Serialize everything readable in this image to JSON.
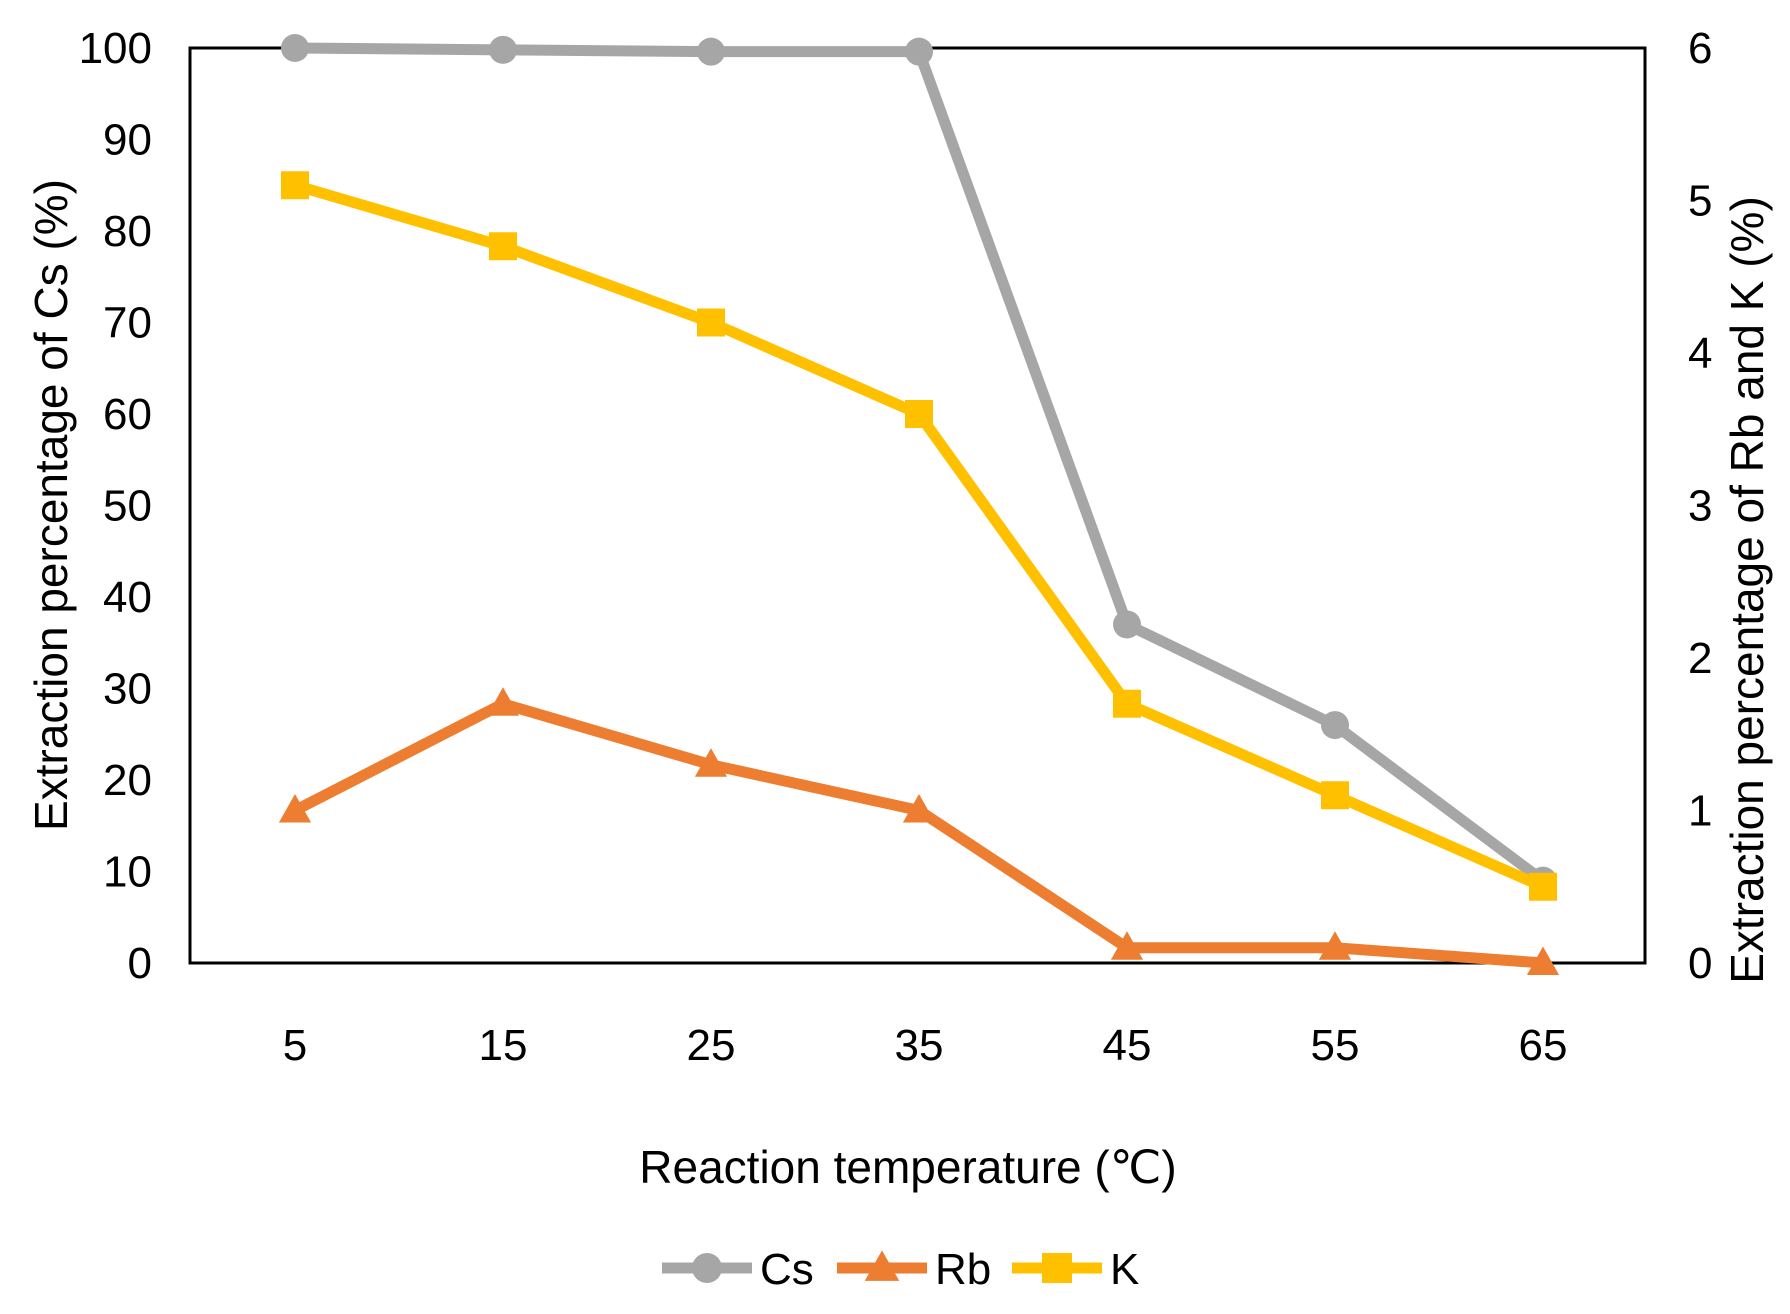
{
  "chart_data": {
    "type": "line",
    "title": "",
    "xlabel": "Reaction temperature (℃)",
    "ylabel_left": "Extraction percentage of Cs (%)",
    "ylabel_right": "Extraction percentage of Rb and K (%)",
    "categories": [
      "5",
      "15",
      "25",
      "35",
      "45",
      "55",
      "65"
    ],
    "y_left": {
      "min": 0,
      "max": 100,
      "step": 10,
      "ticks": [
        "0",
        "10",
        "20",
        "30",
        "40",
        "50",
        "60",
        "70",
        "80",
        "90",
        "100"
      ]
    },
    "y_right": {
      "min": 0,
      "max": 6,
      "step": 1,
      "ticks": [
        "0",
        "1",
        "2",
        "3",
        "4",
        "5",
        "6"
      ]
    },
    "grid": false,
    "legend_position": "bottom",
    "series": [
      {
        "name": "Cs",
        "axis": "left",
        "color": "#a6a6a6",
        "marker": "circle",
        "values": [
          100,
          99.8,
          99.6,
          99.6,
          37,
          26,
          9
        ]
      },
      {
        "name": "Rb",
        "axis": "right",
        "color": "#ed7d31",
        "marker": "triangle",
        "values": [
          1.0,
          1.7,
          1.3,
          1.0,
          0.1,
          0.1,
          0.0
        ]
      },
      {
        "name": "K",
        "axis": "right",
        "color": "#ffc000",
        "marker": "square",
        "values": [
          5.1,
          4.7,
          4.2,
          3.6,
          1.7,
          1.1,
          0.5
        ]
      }
    ]
  }
}
